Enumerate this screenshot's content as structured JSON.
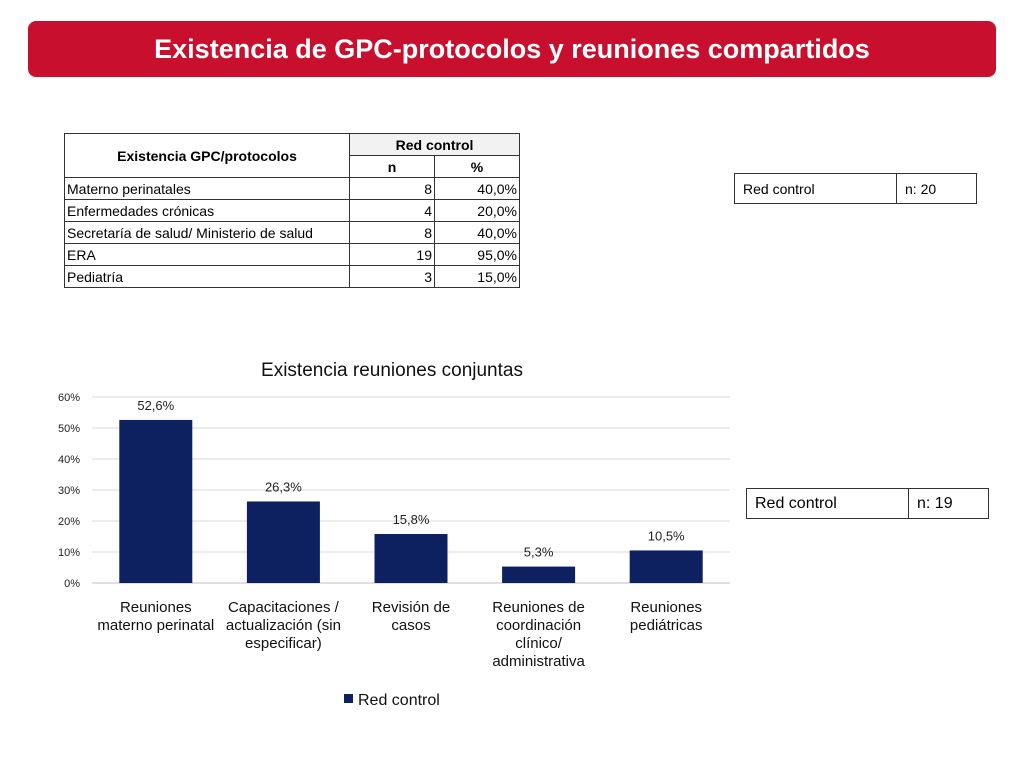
{
  "header": {
    "title": "Existencia de GPC-protocolos y reuniones compartidos"
  },
  "gpc_table": {
    "header_col1": "Existencia GPC/protocolos",
    "header_group": "Red control",
    "header_n": "n",
    "header_pct": "%",
    "rows": [
      {
        "label": "Materno perinatales",
        "n": "8",
        "pct": "40,0%"
      },
      {
        "label": "Enfermedades crónicas",
        "n": "4",
        "pct": "20,0%"
      },
      {
        "label": "Secretaría de salud/ Ministerio de salud",
        "n": "8",
        "pct": "40,0%"
      },
      {
        "label": "ERA",
        "n": "19",
        "pct": "95,0%"
      },
      {
        "label": "Pediatría",
        "n": "3",
        "pct": "15,0%"
      }
    ]
  },
  "n_box_top": {
    "label": "Red control",
    "value": "n: 20"
  },
  "n_box_bottom": {
    "label": "Red control",
    "value": "n: 19"
  },
  "chart_data": {
    "type": "bar",
    "title": "Existencia reuniones conjuntas",
    "categories": [
      [
        "Reuniones",
        "materno perinatal"
      ],
      [
        "Capacitaciones /",
        "actualización (sin",
        "especificar)"
      ],
      [
        "Revisión de",
        "casos"
      ],
      [
        "Reuniones de",
        "coordinación",
        "clínico/",
        "administrativa"
      ],
      [
        "Reuniones",
        "pediátricas"
      ]
    ],
    "series": [
      {
        "name": "Red control",
        "values": [
          52.6,
          26.3,
          15.8,
          5.3,
          10.5
        ],
        "labels": [
          "52,6%",
          "26,3%",
          "15,8%",
          "5,3%",
          "10,5%"
        ]
      }
    ],
    "ylim": [
      0,
      60
    ],
    "yticks": [
      "0%",
      "10%",
      "20%",
      "30%",
      "40%",
      "50%",
      "60%"
    ],
    "grid": true,
    "legend": "bottom",
    "bar_color": "#0d2160"
  }
}
